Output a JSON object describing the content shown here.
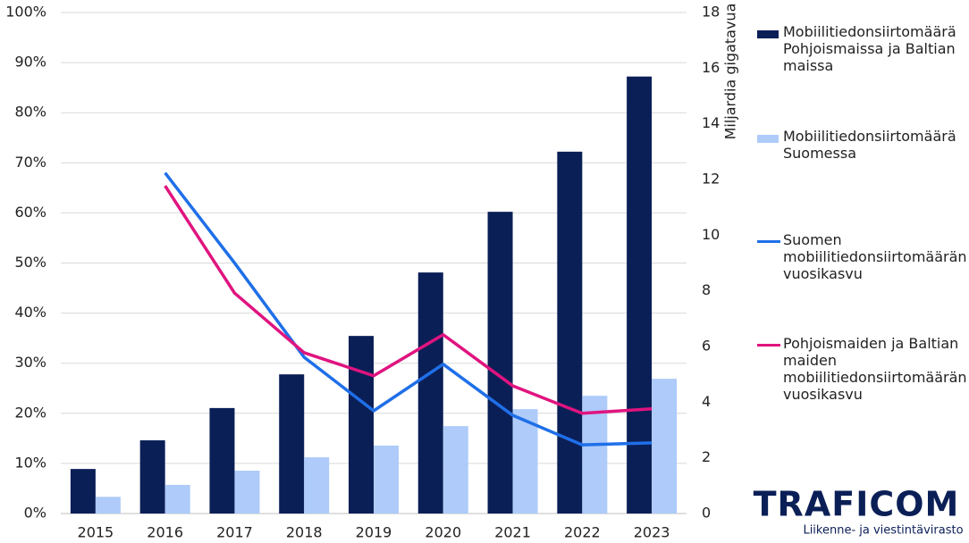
{
  "chart_data": {
    "type": "bar-line",
    "categories": [
      "2015",
      "2016",
      "2017",
      "2018",
      "2019",
      "2020",
      "2021",
      "2022",
      "2023"
    ],
    "series": [
      {
        "name": "Mobiilitiedonsiirtomäärä Pohjoismaissa ja Baltian maissa",
        "type": "bar",
        "axis": "y2",
        "color": "#0b1f57",
        "values": [
          1.6,
          2.63,
          3.79,
          5.0,
          6.38,
          8.66,
          10.84,
          13.0,
          15.7
        ]
      },
      {
        "name": "Mobiilitiedonsiirtomäärä Suomessa",
        "type": "bar",
        "axis": "y2",
        "color": "#aecbfa",
        "values": [
          0.6,
          1.03,
          1.54,
          2.02,
          2.44,
          3.14,
          3.75,
          4.23,
          4.84
        ]
      },
      {
        "name": "Suomen mobiilitiedonsiirtomäärän vuosikasvu",
        "type": "line",
        "axis": "y",
        "color": "#1f6fe8",
        "values": [
          null,
          68,
          50,
          31.2,
          20.5,
          29.8,
          19.6,
          13.7,
          14.1
        ]
      },
      {
        "name": "Pohjoismaiden ja Baltian maiden mobiilitiedonsiirtomäärän vuosikasvu",
        "type": "line",
        "axis": "y",
        "color": "#e0147f",
        "values": [
          null,
          65.4,
          44,
          32.1,
          27.5,
          35.7,
          25.5,
          20,
          20.9
        ]
      }
    ],
    "ylim": [
      0,
      100
    ],
    "yticks": [
      {
        "value": 0,
        "label": "0%"
      },
      {
        "value": 10,
        "label": "10%"
      },
      {
        "value": 20,
        "label": "20%"
      },
      {
        "value": 30,
        "label": "30%"
      },
      {
        "value": 40,
        "label": "40%"
      },
      {
        "value": 50,
        "label": "50%"
      },
      {
        "value": 60,
        "label": "60%"
      },
      {
        "value": 70,
        "label": "70%"
      },
      {
        "value": 80,
        "label": "80%"
      },
      {
        "value": 90,
        "label": "90%"
      },
      {
        "value": 100,
        "label": "100%"
      }
    ],
    "y2lim": [
      0,
      18
    ],
    "y2ticks": [
      0,
      2,
      4,
      6,
      8,
      10,
      12,
      14,
      16,
      18
    ],
    "y2label": "Miljardia gigatavua",
    "grid": true,
    "legend": "right"
  },
  "logo": {
    "name": "TRAFICOM",
    "tagline": "Liikenne- ja viestintävirasto"
  }
}
